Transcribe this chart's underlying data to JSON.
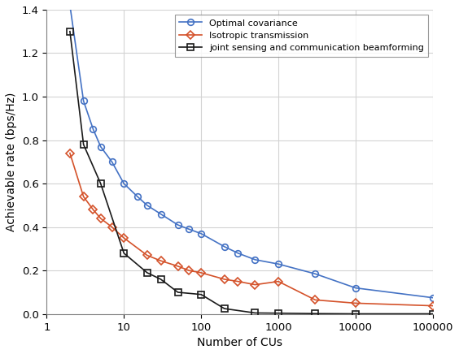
{
  "title": "",
  "xlabel": "Number of CUs",
  "ylabel": "Achievable rate (bps/Hz)",
  "ylim": [
    0,
    1.4
  ],
  "optimal_x": [
    2,
    3,
    4,
    5,
    7,
    10,
    15,
    20,
    30,
    50,
    70,
    100,
    200,
    300,
    500,
    1000,
    3000,
    10000,
    100000
  ],
  "optimal_y": [
    1.42,
    0.98,
    0.85,
    0.77,
    0.7,
    0.6,
    0.54,
    0.5,
    0.46,
    0.41,
    0.39,
    0.37,
    0.31,
    0.28,
    0.25,
    0.23,
    0.185,
    0.12,
    0.075
  ],
  "isotropic_x": [
    2,
    3,
    4,
    5,
    7,
    10,
    20,
    30,
    50,
    70,
    100,
    200,
    300,
    500,
    1000,
    3000,
    10000,
    100000
  ],
  "isotropic_y": [
    0.74,
    0.54,
    0.48,
    0.44,
    0.4,
    0.35,
    0.27,
    0.245,
    0.22,
    0.2,
    0.19,
    0.16,
    0.15,
    0.135,
    0.15,
    0.065,
    0.05,
    0.038
  ],
  "joint_x": [
    2,
    3,
    5,
    10,
    20,
    30,
    50,
    100,
    200,
    500,
    1000,
    3000,
    10000,
    100000
  ],
  "joint_y": [
    1.3,
    0.78,
    0.6,
    0.28,
    0.19,
    0.16,
    0.1,
    0.09,
    0.025,
    0.005,
    0.004,
    0.002,
    0.001,
    0.001
  ],
  "optimal_color": "#4472C4",
  "isotropic_color": "#D4522A",
  "joint_color": "#1A1A1A",
  "optimal_label": "Optimal covariance",
  "isotropic_label": "Isotropic transmission",
  "joint_label": "joint sensing and communication beamforming",
  "grid_color": "#D3D3D3",
  "bg_color": "#FFFFFF",
  "yticks": [
    0,
    0.2,
    0.4,
    0.6,
    0.8,
    1.0,
    1.2,
    1.4
  ],
  "xticks": [
    1,
    10,
    100,
    1000,
    10000,
    100000
  ],
  "xticklabels": [
    "1",
    "10",
    "100",
    "1000",
    "10000",
    "100000"
  ]
}
